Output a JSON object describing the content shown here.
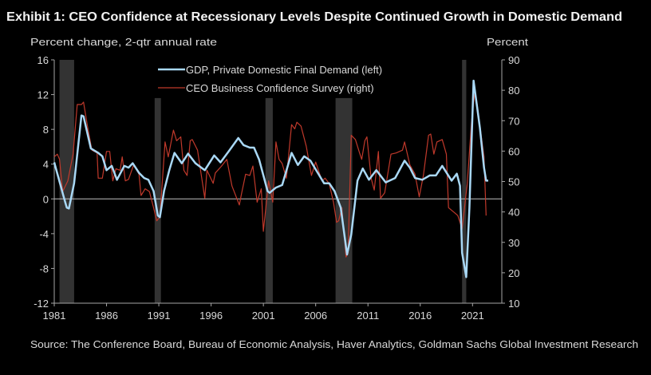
{
  "chart_data": {
    "type": "line",
    "title": "Exhibit 1: CEO Confidence at Recessionary Levels Despite Continued Growth in Domestic Demand",
    "ylabel_left": "Percent change, 2-qtr annual rate",
    "ylabel_right": "Percent",
    "source": "Source: The Conference Board, Bureau of Economic Analysis, Haver Analytics, Goldman Sachs Global Investment Research",
    "xlim": [
      1981,
      2023.8
    ],
    "ylim_left": [
      -12,
      16
    ],
    "ylim_right": [
      10,
      90
    ],
    "x_ticks": [
      "1981",
      "1986",
      "1991",
      "1996",
      "2001",
      "2006",
      "2011",
      "2016",
      "2021"
    ],
    "y_ticks_left": [
      "16",
      "12",
      "8",
      "4",
      "0",
      "-4",
      "-8",
      "-12"
    ],
    "y_ticks_right": [
      "90",
      "80",
      "70",
      "60",
      "50",
      "40",
      "30",
      "20",
      "10"
    ],
    "legend_placement": "top-center",
    "colors": {
      "gdp": "#a9d8f5",
      "ceo": "#c0392b",
      "recession": "#333333",
      "zero_line": "#bfbfbf",
      "axis": "#a6a6a6"
    },
    "recessions": [
      [
        1981.5,
        1982.9
      ],
      [
        1990.6,
        1991.2
      ],
      [
        2001.2,
        2001.9
      ],
      [
        2007.9,
        2009.5
      ],
      [
        2020.0,
        2020.4
      ]
    ],
    "series": [
      {
        "name": "GDP, Private Domestic Final Demand (left)",
        "axis": "left",
        "points": [
          [
            1981,
            4.2
          ],
          [
            1981.9,
            0.25
          ],
          [
            1982.2,
            -1
          ],
          [
            1982.4,
            -1.1
          ],
          [
            1982.9,
            1.8
          ],
          [
            1983.6,
            9.6
          ],
          [
            1983.8,
            9.5
          ],
          [
            1984.5,
            5.8
          ],
          [
            1985.2,
            5.3
          ],
          [
            1985.6,
            4.9
          ],
          [
            1986,
            3.3
          ],
          [
            1986.5,
            3.8
          ],
          [
            1987,
            2.2
          ],
          [
            1987.7,
            3.8
          ],
          [
            1988.1,
            3.6
          ],
          [
            1988.5,
            4.1
          ],
          [
            1989.1,
            3
          ],
          [
            1989.6,
            2.4
          ],
          [
            1990,
            2.2
          ],
          [
            1990.5,
            0.9
          ],
          [
            1990.9,
            -1.9
          ],
          [
            1991.1,
            -2.1
          ],
          [
            1991.5,
            0.9
          ],
          [
            1992,
            3.3
          ],
          [
            1992.5,
            5.3
          ],
          [
            1993.2,
            4.1
          ],
          [
            1993.8,
            5.2
          ],
          [
            1994.5,
            4.1
          ],
          [
            1995.4,
            3.3
          ],
          [
            1996.3,
            5
          ],
          [
            1996.9,
            4.2
          ],
          [
            1997.7,
            5.5
          ],
          [
            1998.6,
            7
          ],
          [
            1999.1,
            6.2
          ],
          [
            1999.7,
            5.9
          ],
          [
            2000.1,
            5.9
          ],
          [
            2000.6,
            4.5
          ],
          [
            2001.4,
            0.9
          ],
          [
            2001.6,
            0.7
          ],
          [
            2002.2,
            1.3
          ],
          [
            2002.8,
            1.6
          ],
          [
            2003.7,
            5.3
          ],
          [
            2004.3,
            3.9
          ],
          [
            2004.9,
            4.9
          ],
          [
            2005.5,
            4.4
          ],
          [
            2006.2,
            3
          ],
          [
            2006.8,
            1.8
          ],
          [
            2007.3,
            1.8
          ],
          [
            2007.8,
            0.9
          ],
          [
            2008.4,
            -1
          ],
          [
            2009,
            -6.4
          ],
          [
            2009.4,
            -4.1
          ],
          [
            2010,
            2.1
          ],
          [
            2010.5,
            3.5
          ],
          [
            2011.1,
            2.2
          ],
          [
            2011.8,
            3.3
          ],
          [
            2012.7,
            1.9
          ],
          [
            2013.6,
            2.4
          ],
          [
            2014.5,
            4.4
          ],
          [
            2015,
            3.6
          ],
          [
            2015.5,
            2.4
          ],
          [
            2016.2,
            2.2
          ],
          [
            2016.9,
            2.7
          ],
          [
            2017.5,
            2.7
          ],
          [
            2018.1,
            3.8
          ],
          [
            2019,
            2.1
          ],
          [
            2019.5,
            2.9
          ],
          [
            2019.8,
            1.5
          ],
          [
            2020.0,
            -6.2
          ],
          [
            2020.4,
            -9
          ],
          [
            2020.7,
            -1
          ],
          [
            2021.1,
            13.6
          ],
          [
            2021.7,
            8.2
          ],
          [
            2022.1,
            3.6
          ],
          [
            2022.3,
            2.1
          ],
          [
            2022.5,
            2.1
          ]
        ]
      },
      {
        "name": "CEO Business Confidence Survey (right)",
        "axis": "right",
        "points": [
          [
            1981,
            58.1
          ],
          [
            1981.3,
            59
          ],
          [
            1981.5,
            57.3
          ],
          [
            1981.8,
            46.7
          ],
          [
            1982.3,
            50.2
          ],
          [
            1982.8,
            59
          ],
          [
            1983.2,
            75.3
          ],
          [
            1983.6,
            75.3
          ],
          [
            1983.8,
            76.1
          ],
          [
            1984.2,
            67.8
          ],
          [
            1984.6,
            60.3
          ],
          [
            1985.1,
            59.4
          ],
          [
            1985.2,
            51.1
          ],
          [
            1985.6,
            51.1
          ],
          [
            1986,
            59.9
          ],
          [
            1986.3,
            59.9
          ],
          [
            1986.6,
            50.2
          ],
          [
            1986.9,
            54.2
          ],
          [
            1987.3,
            53.7
          ],
          [
            1987.5,
            58.1
          ],
          [
            1987.8,
            50.2
          ],
          [
            1988.1,
            50.7
          ],
          [
            1988.6,
            55.5
          ],
          [
            1989.1,
            52.4
          ],
          [
            1989.3,
            45.4
          ],
          [
            1989.7,
            47.6
          ],
          [
            1990.1,
            46.7
          ],
          [
            1990.5,
            41.4
          ],
          [
            1990.8,
            37.1
          ],
          [
            1991.1,
            38.4
          ],
          [
            1991.6,
            63
          ],
          [
            1991.9,
            58.1
          ],
          [
            1992.4,
            66.9
          ],
          [
            1992.7,
            63.4
          ],
          [
            1993.1,
            64.7
          ],
          [
            1993.4,
            53.7
          ],
          [
            1993.7,
            52
          ],
          [
            1994,
            63.4
          ],
          [
            1994.2,
            63.8
          ],
          [
            1994.7,
            60.3
          ],
          [
            1995.4,
            44.5
          ],
          [
            1995.6,
            53.7
          ],
          [
            1996.2,
            49.4
          ],
          [
            1996.4,
            52.8
          ],
          [
            1997,
            55.1
          ],
          [
            1997.5,
            57.3
          ],
          [
            1998,
            48.5
          ],
          [
            1998.7,
            42.3
          ],
          [
            1998.9,
            45.8
          ],
          [
            1999.3,
            52.4
          ],
          [
            1999.7,
            52
          ],
          [
            2000,
            55.1
          ],
          [
            2000.4,
            43.2
          ],
          [
            2000.8,
            47.6
          ],
          [
            2001,
            33.6
          ],
          [
            2001.5,
            50.2
          ],
          [
            2001.9,
            43.2
          ],
          [
            2002.2,
            63
          ],
          [
            2002.5,
            57.3
          ],
          [
            2002.8,
            55.9
          ],
          [
            2003.2,
            51.1
          ],
          [
            2003.7,
            68.7
          ],
          [
            2004,
            67.3
          ],
          [
            2004.2,
            69.5
          ],
          [
            2004.6,
            68.2
          ],
          [
            2005.1,
            61.6
          ],
          [
            2005.6,
            52
          ],
          [
            2006,
            56.4
          ],
          [
            2006.6,
            50.2
          ],
          [
            2006.9,
            51.1
          ],
          [
            2007.3,
            49.3
          ],
          [
            2007.7,
            43.2
          ],
          [
            2008,
            36.6
          ],
          [
            2008.2,
            37.1
          ],
          [
            2008.5,
            41.4
          ],
          [
            2008.9,
            25.2
          ],
          [
            2009.1,
            26.5
          ],
          [
            2009.4,
            65.2
          ],
          [
            2009.8,
            63.8
          ],
          [
            2010.2,
            59.4
          ],
          [
            2010.4,
            57.3
          ],
          [
            2010.7,
            63.4
          ],
          [
            2010.9,
            64.7
          ],
          [
            2011.3,
            51.1
          ],
          [
            2011.6,
            47.2
          ],
          [
            2012,
            59.9
          ],
          [
            2012.2,
            44.5
          ],
          [
            2012.6,
            46.3
          ],
          [
            2013.2,
            59
          ],
          [
            2013.7,
            59.4
          ],
          [
            2014.3,
            60.3
          ],
          [
            2014.5,
            63
          ],
          [
            2015,
            55.5
          ],
          [
            2015.5,
            52.4
          ],
          [
            2015.9,
            45
          ],
          [
            2016.3,
            52
          ],
          [
            2016.8,
            65.2
          ],
          [
            2017,
            65.6
          ],
          [
            2017.3,
            59
          ],
          [
            2017.6,
            63
          ],
          [
            2018.1,
            63.8
          ],
          [
            2018.5,
            59
          ],
          [
            2018.7,
            41.4
          ],
          [
            2019.3,
            39.7
          ],
          [
            2019.6,
            38.8
          ],
          [
            2020,
            34.4
          ],
          [
            2020.5,
            49.3
          ],
          [
            2020.9,
            69.5
          ],
          [
            2021.2,
            78.8
          ],
          [
            2021.4,
            76.5
          ],
          [
            2022.1,
            58.1
          ],
          [
            2022.3,
            38.8
          ]
        ]
      }
    ]
  }
}
